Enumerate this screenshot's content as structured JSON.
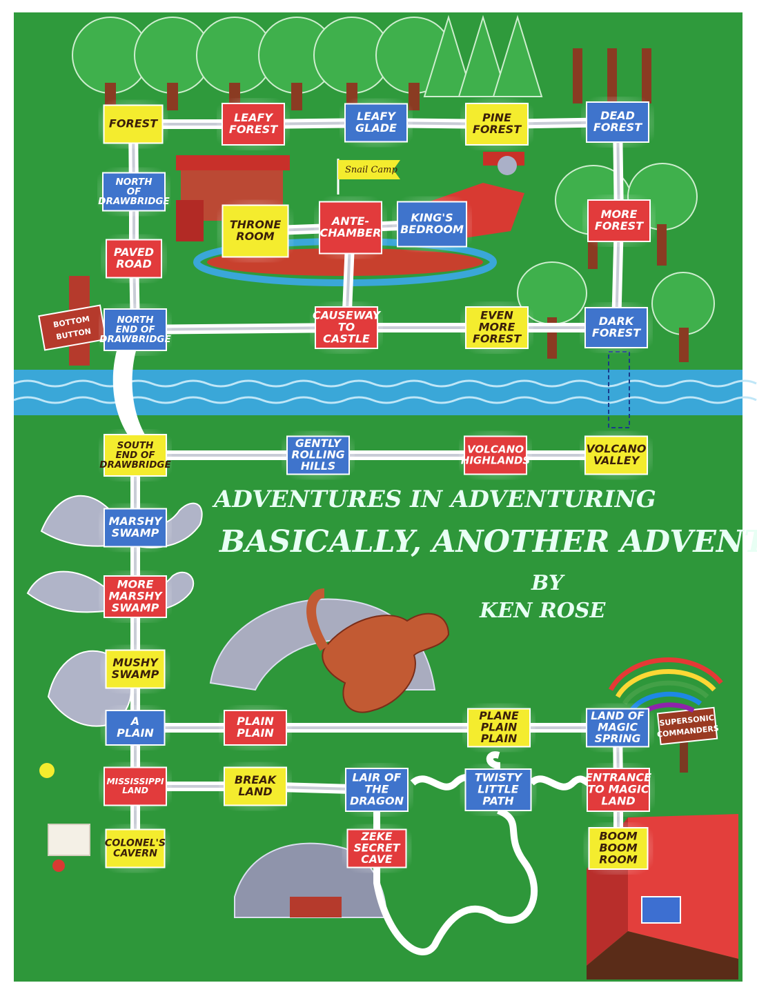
{
  "title": {
    "line1": "ADVENTURES IN ADVENTURING",
    "line2": "BASICALLY, ANOTHER ADVENTURE",
    "by": "BY",
    "author": "KEN ROSE"
  },
  "signs": {
    "left_sign_line1": "BOTTOM",
    "left_sign_line2": "BUTTON",
    "right_sign_line1": "SUPERSONIC",
    "right_sign_line2": "COMMANDERS",
    "flag": "Snail Camp"
  },
  "colors": {
    "grass": "#2f9a3c",
    "river": "#3aa7d8",
    "yellow": "#f4ec2e",
    "red": "#e23b3c",
    "blue": "#3f74cc",
    "path": "#ffffff"
  },
  "locations": {
    "forest": {
      "lines": [
        "FOREST"
      ],
      "color": "yellow"
    },
    "leafy_forest": {
      "lines": [
        "LEAFY",
        "FOREST"
      ],
      "color": "red"
    },
    "leafy_glade": {
      "lines": [
        "LEAFY",
        "GLADE"
      ],
      "color": "blue"
    },
    "pine_forest": {
      "lines": [
        "PINE",
        "FOREST"
      ],
      "color": "yellow"
    },
    "dead_forest": {
      "lines": [
        "DEAD",
        "FOREST"
      ],
      "color": "blue"
    },
    "north_of_drawbridge": {
      "lines": [
        "NORTH",
        "OF",
        "DRAWBRIDGE"
      ],
      "color": "blue"
    },
    "throne_room": {
      "lines": [
        "THRONE",
        "ROOM"
      ],
      "color": "yellow"
    },
    "ante_chamber": {
      "lines": [
        "ANTE-",
        "CHAMBER"
      ],
      "color": "red"
    },
    "kings_bedroom": {
      "lines": [
        "KING'S",
        "BEDROOM"
      ],
      "color": "blue"
    },
    "more_forest": {
      "lines": [
        "MORE",
        "FOREST"
      ],
      "color": "red"
    },
    "paved_road": {
      "lines": [
        "PAVED",
        "ROAD"
      ],
      "color": "red"
    },
    "north_end_drawbridge": {
      "lines": [
        "NORTH",
        "END OF",
        "DRAWBRIDGE"
      ],
      "color": "blue"
    },
    "causeway_to_castle": {
      "lines": [
        "CAUSEWAY",
        "TO",
        "CASTLE"
      ],
      "color": "red"
    },
    "even_more_forest": {
      "lines": [
        "EVEN",
        "MORE",
        "FOREST"
      ],
      "color": "yellow"
    },
    "dark_forest": {
      "lines": [
        "DARK",
        "FOREST"
      ],
      "color": "blue"
    },
    "south_end_drawbridge": {
      "lines": [
        "SOUTH",
        "END OF",
        "DRAWBRIDGE"
      ],
      "color": "yellow"
    },
    "gently_rolling_hills": {
      "lines": [
        "GENTLY",
        "ROLLING",
        "HILLS"
      ],
      "color": "blue"
    },
    "volcano_highlands": {
      "lines": [
        "VOLCANO",
        "HIGHLANDS"
      ],
      "color": "red"
    },
    "volcano_valley": {
      "lines": [
        "VOLCANO",
        "VALLEY"
      ],
      "color": "yellow"
    },
    "marshy_swamp": {
      "lines": [
        "MARSHY",
        "SWAMP"
      ],
      "color": "blue"
    },
    "more_marshy_swamp": {
      "lines": [
        "MORE",
        "MARSHY",
        "SWAMP"
      ],
      "color": "red"
    },
    "mushy_swamp": {
      "lines": [
        "MUSHY",
        "SWAMP"
      ],
      "color": "yellow"
    },
    "a_plain": {
      "lines": [
        "A",
        "PLAIN"
      ],
      "color": "blue"
    },
    "plain_plain": {
      "lines": [
        "PLAIN",
        "PLAIN"
      ],
      "color": "red"
    },
    "plane_plain_plain": {
      "lines": [
        "PLANE",
        "PLAIN",
        "PLAIN"
      ],
      "color": "yellow"
    },
    "land_of_magic_spring": {
      "lines": [
        "LAND OF",
        "MAGIC",
        "SPRING"
      ],
      "color": "blue"
    },
    "mississippi_land": {
      "lines": [
        "MISSISSIPPI",
        "LAND"
      ],
      "color": "red"
    },
    "break_land": {
      "lines": [
        "BREAK",
        "LAND"
      ],
      "color": "yellow"
    },
    "lair_of_the_dragon": {
      "lines": [
        "LAIR OF",
        "THE",
        "DRAGON"
      ],
      "color": "blue"
    },
    "twisty_little_path": {
      "lines": [
        "TWISTY",
        "LITTLE",
        "PATH"
      ],
      "color": "blue"
    },
    "entrance_to_magic_land": {
      "lines": [
        "ENTRANCE",
        "TO MAGIC",
        "LAND"
      ],
      "color": "red"
    },
    "colonels_cavern": {
      "lines": [
        "COLONEL'S",
        "CAVERN"
      ],
      "color": "yellow"
    },
    "zeke_secret_cave": {
      "lines": [
        "ZEKE",
        "SECRET",
        "CAVE"
      ],
      "color": "red"
    },
    "boom_boom_room": {
      "lines": [
        "BOOM",
        "BOOM",
        "ROOM"
      ],
      "color": "yellow"
    }
  }
}
